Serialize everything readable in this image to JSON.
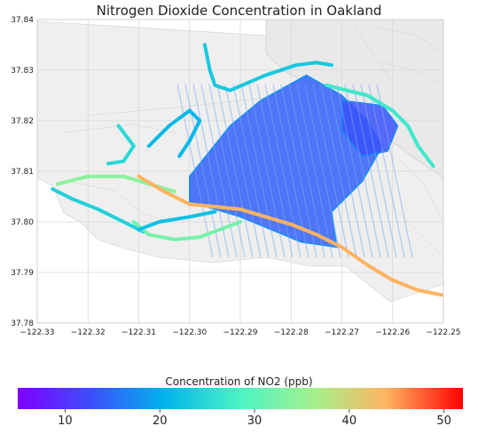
{
  "chart_data": {
    "type": "heatmap",
    "title": "Nitrogen Dioxide Concentration in Oakland",
    "xlabel": "",
    "ylabel": "",
    "xlim": [
      -122.33,
      -122.25
    ],
    "ylim": [
      37.78,
      37.84
    ],
    "xticks": [
      -122.33,
      -122.32,
      -122.31,
      -122.3,
      -122.29,
      -122.28,
      -122.27,
      -122.26,
      -122.25
    ],
    "xtick_labels": [
      "−122.33",
      "−122.32",
      "−122.31",
      "−122.30",
      "−122.29",
      "−122.28",
      "−122.27",
      "−122.26",
      "−122.25"
    ],
    "yticks": [
      37.78,
      37.79,
      37.8,
      37.81,
      37.82,
      37.83,
      37.84
    ],
    "ytick_labels": [
      "37.78",
      "37.79",
      "37.80",
      "37.81",
      "37.82",
      "37.83",
      "37.84"
    ],
    "grid": true,
    "colorbar": {
      "label": "Concentration of NO2 (ppb)",
      "range": [
        5,
        52
      ],
      "ticks": [
        10,
        20,
        30,
        40,
        50
      ],
      "tick_labels": [
        "10",
        "20",
        "30",
        "40",
        "50"
      ],
      "colormap": "rainbow"
    },
    "series": [
      {
        "points": [
          [
            -122.327,
            37.8065
          ],
          [
            -122.323,
            37.8045
          ],
          [
            -122.318,
            37.8025
          ],
          [
            -122.313,
            37.8
          ],
          [
            -122.309,
            37.798
          ]
        ],
        "no2": 24
      },
      {
        "points": [
          [
            -122.326,
            37.8075
          ],
          [
            -122.32,
            37.809
          ],
          [
            -122.313,
            37.809
          ],
          [
            -122.308,
            37.8075
          ],
          [
            -122.303,
            37.806
          ]
        ],
        "no2": 34
      },
      {
        "points": [
          [
            -122.31,
            37.809
          ],
          [
            -122.305,
            37.806
          ],
          [
            -122.3,
            37.8035
          ],
          [
            -122.295,
            37.803
          ],
          [
            -122.29,
            37.8025
          ],
          [
            -122.285,
            37.801
          ],
          [
            -122.28,
            37.7995
          ],
          [
            -122.275,
            37.7975
          ],
          [
            -122.27,
            37.795
          ],
          [
            -122.265,
            37.7915
          ],
          [
            -122.26,
            37.7885
          ],
          [
            -122.255,
            37.7865
          ],
          [
            -122.25,
            37.7855
          ]
        ],
        "no2": 44
      },
      {
        "points": [
          [
            -122.311,
            37.8
          ],
          [
            -122.308,
            37.7975
          ],
          [
            -122.303,
            37.7965
          ],
          [
            -122.298,
            37.797
          ],
          [
            -122.294,
            37.7985
          ],
          [
            -122.29,
            37.8
          ]
        ],
        "no2": 32
      },
      {
        "points": [
          [
            -122.297,
            37.835
          ],
          [
            -122.296,
            37.83
          ],
          [
            -122.295,
            37.827
          ],
          [
            -122.292,
            37.826
          ],
          [
            -122.285,
            37.829
          ],
          [
            -122.279,
            37.831
          ],
          [
            -122.275,
            37.8315
          ],
          [
            -122.272,
            37.831
          ]
        ],
        "no2": 23
      },
      {
        "points": [
          [
            -122.273,
            37.827
          ],
          [
            -122.265,
            37.825
          ],
          [
            -122.26,
            37.822
          ],
          [
            -122.257,
            37.819
          ],
          [
            -122.255,
            37.815
          ],
          [
            -122.252,
            37.811
          ]
        ],
        "no2": 27
      },
      {
        "points": [
          [
            -122.308,
            37.815
          ],
          [
            -122.304,
            37.819
          ],
          [
            -122.3,
            37.822
          ],
          [
            -122.298,
            37.82
          ],
          [
            -122.3,
            37.816
          ],
          [
            -122.302,
            37.813
          ]
        ],
        "no2": 21
      },
      {
        "points": [
          [
            -122.314,
            37.819
          ],
          [
            -122.311,
            37.815
          ],
          [
            -122.313,
            37.812
          ],
          [
            -122.316,
            37.8115
          ]
        ],
        "no2": 25
      },
      {
        "points": [
          [
            -122.31,
            37.7985
          ],
          [
            -122.306,
            37.8
          ],
          [
            -122.3,
            37.801
          ],
          [
            -122.295,
            37.802
          ]
        ],
        "no2": 22
      }
    ],
    "grid_blocks": [
      {
        "points": [
          [
            -122.3,
            37.809
          ],
          [
            -122.292,
            37.819
          ],
          [
            -122.286,
            37.824
          ],
          [
            -122.277,
            37.829
          ],
          [
            -122.27,
            37.825
          ],
          [
            -122.265,
            37.82
          ],
          [
            -122.262,
            37.815
          ],
          [
            -122.266,
            37.808
          ],
          [
            -122.272,
            37.802
          ],
          [
            -122.271,
            37.795
          ],
          [
            -122.278,
            37.796
          ],
          [
            -122.29,
            37.801
          ],
          [
            -122.3,
            37.804
          ]
        ],
        "no2": 14
      },
      {
        "points": [
          [
            -122.27,
            37.824
          ],
          [
            -122.262,
            37.823
          ],
          [
            -122.259,
            37.819
          ],
          [
            -122.261,
            37.814
          ],
          [
            -122.266,
            37.813
          ],
          [
            -122.27,
            37.818
          ]
        ],
        "no2": 13
      }
    ]
  }
}
